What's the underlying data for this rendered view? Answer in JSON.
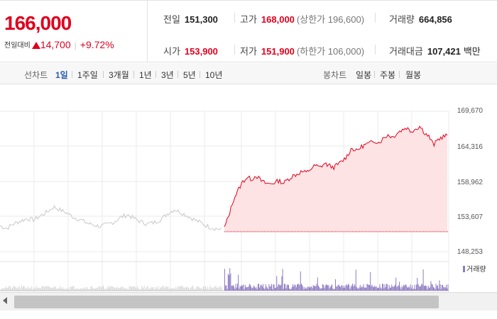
{
  "quote": {
    "price": "166,000",
    "change_label": "전일대비",
    "change_value": "14,700",
    "change_pct": "+9.72%",
    "prev_close": {
      "label": "전일",
      "value": "151,300"
    },
    "high": {
      "label": "고가",
      "value": "168,000",
      "sub": "(상한가 196,600)"
    },
    "volume": {
      "label": "거래량",
      "value": "664,856"
    },
    "open": {
      "label": "시가",
      "value": "153,900"
    },
    "low": {
      "label": "저가",
      "value": "151,900",
      "sub": "(하한가 106,000)"
    },
    "amount": {
      "label": "거래대금",
      "value": "107,421",
      "unit": "백만"
    }
  },
  "period_bar": {
    "line_label": "선차트",
    "line_periods": [
      "1일",
      "1주일",
      "3개월",
      "1년",
      "3년",
      "5년",
      "10년"
    ],
    "active_period": "1일",
    "candle_label": "봉차트",
    "candle_periods": [
      "일봉",
      "주봉",
      "월봉"
    ]
  },
  "chart": {
    "y_ticks": [
      "169,670",
      "164,316",
      "158,962",
      "153,607",
      "148,253"
    ],
    "volume_legend": "거래량",
    "colors": {
      "up": "#e0001e",
      "prev": "#c8c8c8",
      "fill": "#fde3e3",
      "volume": "#8e7bc2"
    }
  },
  "chart_data": {
    "type": "line",
    "ylim": [
      148253,
      169670
    ],
    "reference_price": 151300,
    "prev_day_series": [
      152200,
      151800,
      152500,
      152900,
      153300,
      153100,
      153700,
      154300,
      155100,
      154600,
      154100,
      153500,
      153100,
      152600,
      152300,
      152100,
      152400,
      152800,
      153500,
      153900,
      153300,
      152800,
      152500,
      152700,
      153200,
      154100,
      154700,
      154200,
      153700,
      153100,
      152600,
      152100,
      151800,
      151600
    ],
    "today_series": [
      151900,
      153800,
      156200,
      157600,
      158900,
      159600,
      159300,
      159900,
      159100,
      158700,
      158600,
      158800,
      159100,
      158700,
      159300,
      159800,
      160100,
      160500,
      160300,
      160900,
      161400,
      161100,
      161700,
      161400,
      161100,
      161600,
      162100,
      162900,
      164100,
      163600,
      164200,
      164600,
      164800,
      165200,
      164900,
      165600,
      166100,
      165700,
      166400,
      166800,
      167200,
      166600,
      167000,
      167400,
      166400,
      165800,
      164500,
      165400,
      165800,
      166000
    ]
  }
}
